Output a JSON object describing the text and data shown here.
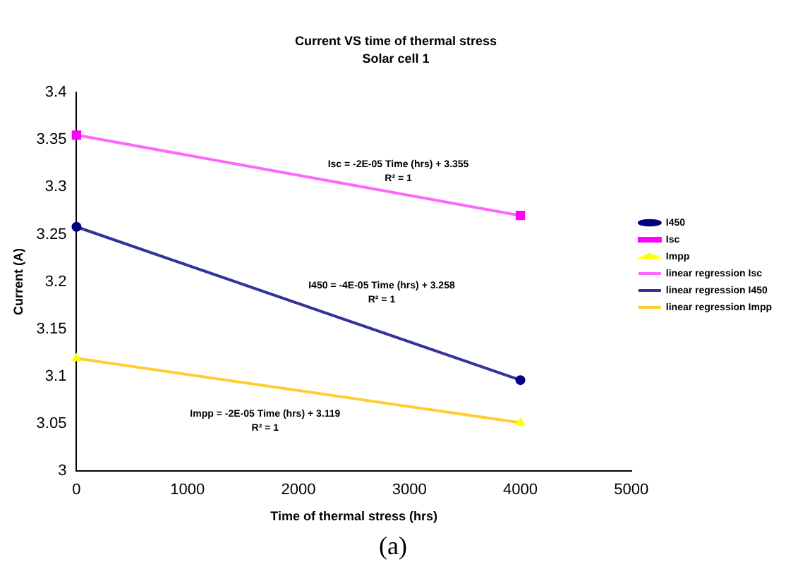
{
  "chart_data": {
    "type": "line",
    "title": "Current VS time of thermal stress",
    "subtitle": "Solar cell 1",
    "xlabel": "Time of thermal stress (hrs)",
    "ylabel": "Current (A)",
    "xlim": [
      0,
      5000
    ],
    "xticks": [
      0,
      1000,
      2000,
      3000,
      4000,
      5000
    ],
    "ylim": [
      3,
      3.4
    ],
    "yticks": [
      3,
      3.05,
      3.1,
      3.15,
      3.2,
      3.25,
      3.3,
      3.35,
      3.4
    ],
    "grid": false,
    "legend": "right",
    "x": [
      0,
      4000
    ],
    "series": [
      {
        "name": "I450",
        "type": "scatter",
        "marker": "circle",
        "color": "#000080",
        "values": [
          3.258,
          3.096
        ]
      },
      {
        "name": "Isc",
        "type": "scatter",
        "marker": "square",
        "color": "#ff00ff",
        "values": [
          3.355,
          3.27
        ]
      },
      {
        "name": "Impp",
        "type": "scatter",
        "marker": "triangle",
        "color": "#ffff00",
        "values": [
          3.119,
          3.051
        ]
      },
      {
        "name": "linear regression Isc",
        "marker": "none",
        "color": "#ff66ff",
        "values": [
          3.355,
          3.27
        ]
      },
      {
        "name": "linear regression I450",
        "marker": "none",
        "color": "#333399",
        "values": [
          3.258,
          3.096
        ]
      },
      {
        "name": "linear regression Impp",
        "marker": "none",
        "color": "#ffcc33",
        "values": [
          3.119,
          3.051
        ]
      }
    ],
    "annotations": [
      "Isc = -2E-05 Time (hrs) + 3.355\nR² = 1",
      "I450 = -4E-05 Time (hrs) + 3.258\nR² = 1",
      "Impp = -2E-05 Time (hrs) + 3.119\nR² = 1",
      "(a)"
    ]
  }
}
